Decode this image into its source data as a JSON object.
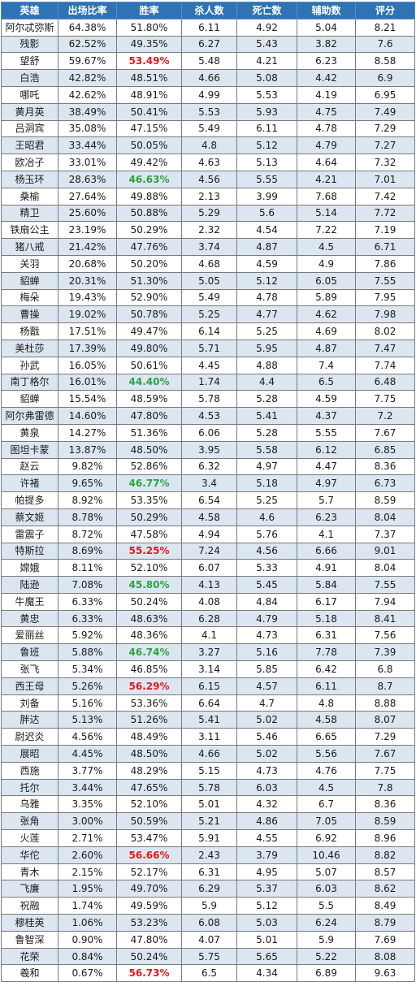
{
  "header": {
    "hero": "英雄",
    "pick_rate": "出场比率",
    "win_rate": "胜率",
    "kills": "杀人数",
    "deaths": "死亡数",
    "assists": "辅助数",
    "score": "评分"
  },
  "colors": {
    "header_bg": "#2e74b5",
    "stripe": "#dce6f1",
    "highlight_red": "#e3171a",
    "highlight_green": "#2aa33f"
  },
  "rows": [
    {
      "hero": "阿尔忒弥斯",
      "pick": "64.38%",
      "win": "51.80%",
      "kills": "6.11",
      "deaths": "4.92",
      "assists": "5.04",
      "score": "8.21",
      "hl": ""
    },
    {
      "hero": "残影",
      "pick": "62.52%",
      "win": "49.35%",
      "kills": "6.27",
      "deaths": "5.43",
      "assists": "3.82",
      "score": "7.6",
      "hl": ""
    },
    {
      "hero": "望舒",
      "pick": "59.67%",
      "win": "53.49%",
      "kills": "5.48",
      "deaths": "4.21",
      "assists": "6.23",
      "score": "8.58",
      "hl": "red"
    },
    {
      "hero": "白浩",
      "pick": "42.82%",
      "win": "48.51%",
      "kills": "4.66",
      "deaths": "5.08",
      "assists": "4.42",
      "score": "6.9",
      "hl": ""
    },
    {
      "hero": "哪吒",
      "pick": "42.62%",
      "win": "48.91%",
      "kills": "4.99",
      "deaths": "5.53",
      "assists": "4.19",
      "score": "6.95",
      "hl": ""
    },
    {
      "hero": "黄月英",
      "pick": "38.49%",
      "win": "50.41%",
      "kills": "5.53",
      "deaths": "5.93",
      "assists": "4.75",
      "score": "7.49",
      "hl": ""
    },
    {
      "hero": "吕洞宾",
      "pick": "35.08%",
      "win": "47.15%",
      "kills": "5.49",
      "deaths": "6.11",
      "assists": "4.78",
      "score": "7.29",
      "hl": ""
    },
    {
      "hero": "王昭君",
      "pick": "33.44%",
      "win": "50.05%",
      "kills": "4.8",
      "deaths": "5.12",
      "assists": "4.79",
      "score": "7.27",
      "hl": ""
    },
    {
      "hero": "欧冶子",
      "pick": "33.01%",
      "win": "49.42%",
      "kills": "4.63",
      "deaths": "5.13",
      "assists": "4.64",
      "score": "7.32",
      "hl": ""
    },
    {
      "hero": "杨玉环",
      "pick": "28.63%",
      "win": "46.63%",
      "kills": "4.56",
      "deaths": "5.55",
      "assists": "4.21",
      "score": "7.01",
      "hl": "green"
    },
    {
      "hero": "桑榆",
      "pick": "27.64%",
      "win": "49.88%",
      "kills": "2.13",
      "deaths": "3.99",
      "assists": "7.68",
      "score": "7.42",
      "hl": ""
    },
    {
      "hero": "精卫",
      "pick": "25.60%",
      "win": "50.88%",
      "kills": "5.29",
      "deaths": "5.6",
      "assists": "5.14",
      "score": "7.72",
      "hl": ""
    },
    {
      "hero": "铁扇公主",
      "pick": "23.19%",
      "win": "50.29%",
      "kills": "2.32",
      "deaths": "4.54",
      "assists": "7.22",
      "score": "7.19",
      "hl": ""
    },
    {
      "hero": "猪八戒",
      "pick": "21.42%",
      "win": "47.76%",
      "kills": "3.74",
      "deaths": "4.87",
      "assists": "4.5",
      "score": "6.71",
      "hl": ""
    },
    {
      "hero": "关羽",
      "pick": "20.68%",
      "win": "50.20%",
      "kills": "4.68",
      "deaths": "4.59",
      "assists": "4.9",
      "score": "7.86",
      "hl": ""
    },
    {
      "hero": "貂蝉",
      "pick": "20.31%",
      "win": "51.30%",
      "kills": "5.05",
      "deaths": "5.12",
      "assists": "6.05",
      "score": "7.55",
      "hl": ""
    },
    {
      "hero": "梅朵",
      "pick": "19.43%",
      "win": "52.90%",
      "kills": "5.49",
      "deaths": "4.78",
      "assists": "5.89",
      "score": "7.95",
      "hl": ""
    },
    {
      "hero": "曹操",
      "pick": "19.02%",
      "win": "50.78%",
      "kills": "5.25",
      "deaths": "4.77",
      "assists": "4.62",
      "score": "7.98",
      "hl": ""
    },
    {
      "hero": "杨戬",
      "pick": "17.51%",
      "win": "49.47%",
      "kills": "6.14",
      "deaths": "5.25",
      "assists": "4.69",
      "score": "8.02",
      "hl": ""
    },
    {
      "hero": "美杜莎",
      "pick": "17.39%",
      "win": "49.80%",
      "kills": "5.71",
      "deaths": "5.95",
      "assists": "4.87",
      "score": "7.47",
      "hl": ""
    },
    {
      "hero": "孙武",
      "pick": "16.05%",
      "win": "50.61%",
      "kills": "4.45",
      "deaths": "4.88",
      "assists": "7.4",
      "score": "7.74",
      "hl": ""
    },
    {
      "hero": "南丁格尔",
      "pick": "16.01%",
      "win": "44.40%",
      "kills": "1.74",
      "deaths": "4.4",
      "assists": "6.5",
      "score": "6.48",
      "hl": "green"
    },
    {
      "hero": "貂蝉",
      "pick": "15.54%",
      "win": "48.59%",
      "kills": "5.78",
      "deaths": "5.28",
      "assists": "4.59",
      "score": "7.75",
      "hl": ""
    },
    {
      "hero": "阿尔弗雷德",
      "pick": "14.60%",
      "win": "47.80%",
      "kills": "4.53",
      "deaths": "5.41",
      "assists": "4.37",
      "score": "7.2",
      "hl": ""
    },
    {
      "hero": "黄泉",
      "pick": "14.27%",
      "win": "51.36%",
      "kills": "6.06",
      "deaths": "5.28",
      "assists": "5.55",
      "score": "7.67",
      "hl": ""
    },
    {
      "hero": "图坦卡蒙",
      "pick": "13.87%",
      "win": "48.50%",
      "kills": "3.95",
      "deaths": "5.58",
      "assists": "6.12",
      "score": "6.85",
      "hl": ""
    },
    {
      "hero": "赵云",
      "pick": "9.82%",
      "win": "52.86%",
      "kills": "6.32",
      "deaths": "4.97",
      "assists": "4.47",
      "score": "8.36",
      "hl": ""
    },
    {
      "hero": "许褚",
      "pick": "9.65%",
      "win": "46.77%",
      "kills": "3.4",
      "deaths": "5.18",
      "assists": "4.97",
      "score": "6.73",
      "hl": "green"
    },
    {
      "hero": "帕提多",
      "pick": "8.92%",
      "win": "53.35%",
      "kills": "6.54",
      "deaths": "5.25",
      "assists": "5.7",
      "score": "8.59",
      "hl": ""
    },
    {
      "hero": "蔡文姬",
      "pick": "8.78%",
      "win": "50.29%",
      "kills": "4.58",
      "deaths": "4.6",
      "assists": "6.23",
      "score": "8.04",
      "hl": ""
    },
    {
      "hero": "雷震子",
      "pick": "8.72%",
      "win": "47.58%",
      "kills": "4.94",
      "deaths": "5.76",
      "assists": "4.1",
      "score": "7.37",
      "hl": ""
    },
    {
      "hero": "特斯拉",
      "pick": "8.69%",
      "win": "55.25%",
      "kills": "7.24",
      "deaths": "4.56",
      "assists": "6.66",
      "score": "9.01",
      "hl": "red"
    },
    {
      "hero": "嫦娥",
      "pick": "8.11%",
      "win": "52.10%",
      "kills": "6.07",
      "deaths": "5.33",
      "assists": "4.91",
      "score": "8.04",
      "hl": ""
    },
    {
      "hero": "陆逊",
      "pick": "7.08%",
      "win": "45.80%",
      "kills": "4.13",
      "deaths": "5.45",
      "assists": "5.84",
      "score": "7.55",
      "hl": "green"
    },
    {
      "hero": "牛魔王",
      "pick": "6.33%",
      "win": "50.24%",
      "kills": "4.08",
      "deaths": "4.84",
      "assists": "6.17",
      "score": "7.94",
      "hl": ""
    },
    {
      "hero": "黄忠",
      "pick": "6.33%",
      "win": "48.63%",
      "kills": "6.28",
      "deaths": "4.79",
      "assists": "5.18",
      "score": "8.41",
      "hl": ""
    },
    {
      "hero": "爱丽丝",
      "pick": "5.92%",
      "win": "48.36%",
      "kills": "4.1",
      "deaths": "4.73",
      "assists": "6.31",
      "score": "7.56",
      "hl": ""
    },
    {
      "hero": "鲁班",
      "pick": "5.88%",
      "win": "46.74%",
      "kills": "3.27",
      "deaths": "5.16",
      "assists": "7.78",
      "score": "7.39",
      "hl": "green"
    },
    {
      "hero": "张飞",
      "pick": "5.34%",
      "win": "46.85%",
      "kills": "3.14",
      "deaths": "5.85",
      "assists": "6.42",
      "score": "6.8",
      "hl": ""
    },
    {
      "hero": "西王母",
      "pick": "5.26%",
      "win": "56.29%",
      "kills": "6.15",
      "deaths": "4.57",
      "assists": "6.11",
      "score": "8.7",
      "hl": "red"
    },
    {
      "hero": "刘备",
      "pick": "5.16%",
      "win": "53.36%",
      "kills": "6.64",
      "deaths": "4.7",
      "assists": "4.8",
      "score": "8.88",
      "hl": ""
    },
    {
      "hero": "胖达",
      "pick": "5.13%",
      "win": "51.26%",
      "kills": "5.41",
      "deaths": "5.02",
      "assists": "4.58",
      "score": "8.07",
      "hl": ""
    },
    {
      "hero": "尉迟炎",
      "pick": "4.56%",
      "win": "48.49%",
      "kills": "3.11",
      "deaths": "5.46",
      "assists": "6.65",
      "score": "7.29",
      "hl": ""
    },
    {
      "hero": "展昭",
      "pick": "4.45%",
      "win": "48.50%",
      "kills": "4.66",
      "deaths": "5.02",
      "assists": "5.56",
      "score": "7.67",
      "hl": ""
    },
    {
      "hero": "西施",
      "pick": "3.77%",
      "win": "48.29%",
      "kills": "5.15",
      "deaths": "4.73",
      "assists": "4.76",
      "score": "7.75",
      "hl": ""
    },
    {
      "hero": "托尔",
      "pick": "3.44%",
      "win": "47.65%",
      "kills": "5.78",
      "deaths": "6.03",
      "assists": "4.5",
      "score": "7.8",
      "hl": ""
    },
    {
      "hero": "乌雅",
      "pick": "3.35%",
      "win": "52.10%",
      "kills": "5.01",
      "deaths": "4.32",
      "assists": "6.7",
      "score": "8.36",
      "hl": ""
    },
    {
      "hero": "张角",
      "pick": "3.00%",
      "win": "50.59%",
      "kills": "5.21",
      "deaths": "4.86",
      "assists": "7.05",
      "score": "8.59",
      "hl": ""
    },
    {
      "hero": "火莲",
      "pick": "2.71%",
      "win": "53.47%",
      "kills": "5.91",
      "deaths": "4.55",
      "assists": "6.92",
      "score": "8.96",
      "hl": ""
    },
    {
      "hero": "华佗",
      "pick": "2.60%",
      "win": "56.66%",
      "kills": "2.43",
      "deaths": "3.79",
      "assists": "10.46",
      "score": "8.82",
      "hl": "red"
    },
    {
      "hero": "青木",
      "pick": "2.15%",
      "win": "52.17%",
      "kills": "6.31",
      "deaths": "4.95",
      "assists": "5.07",
      "score": "8.57",
      "hl": ""
    },
    {
      "hero": "飞廉",
      "pick": "1.95%",
      "win": "49.70%",
      "kills": "6.29",
      "deaths": "5.37",
      "assists": "6.03",
      "score": "8.62",
      "hl": ""
    },
    {
      "hero": "祝融",
      "pick": "1.74%",
      "win": "49.59%",
      "kills": "5.9",
      "deaths": "5.12",
      "assists": "5.5",
      "score": "8.49",
      "hl": ""
    },
    {
      "hero": "穆桂英",
      "pick": "1.06%",
      "win": "53.23%",
      "kills": "6.08",
      "deaths": "5.03",
      "assists": "6.24",
      "score": "8.79",
      "hl": ""
    },
    {
      "hero": "鲁智深",
      "pick": "0.90%",
      "win": "47.80%",
      "kills": "4.07",
      "deaths": "5.01",
      "assists": "5.9",
      "score": "7.69",
      "hl": ""
    },
    {
      "hero": "花荣",
      "pick": "0.84%",
      "win": "50.24%",
      "kills": "5.75",
      "deaths": "5.65",
      "assists": "5.22",
      "score": "8.08",
      "hl": ""
    },
    {
      "hero": "羲和",
      "pick": "0.67%",
      "win": "56.73%",
      "kills": "6.5",
      "deaths": "4.34",
      "assists": "6.89",
      "score": "9.63",
      "hl": "red"
    }
  ]
}
